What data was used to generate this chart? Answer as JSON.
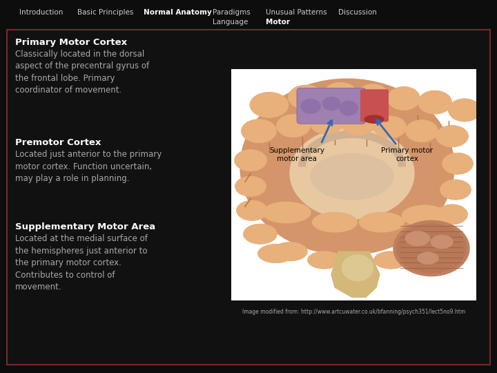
{
  "background_color": "#0d0d0d",
  "border_color": "#7a2828",
  "nav_items": [
    "Introduction",
    "Basic Principles",
    "Normal Anatomy",
    "Paradigms",
    "Unusual Patterns",
    "Discussion"
  ],
  "nav_bold": "Normal Anatomy",
  "nav_sub": [
    "Language",
    "Motor"
  ],
  "nav_sub_bold": "Motor",
  "nav_color": "#cccccc",
  "nav_bold_color": "#ffffff",
  "content_bg": "#111111",
  "section1_title": "Primary Motor Cortex",
  "section1_text": "Classically located in the dorsal\naspect of the precentral gyrus of\nthe frontal lobe. Primary\ncoordinator of movement.",
  "section2_title": "Premotor Cortex",
  "section2_text": "Located just anterior to the primary\nmotor cortex. Function uncertain,\nmay play a role in planning.",
  "section3_title": "Supplementary Motor Area",
  "section3_text": "Located at the medial surface of\nthe hemispheres just anterior to\nthe primary motor cortex.\nContributes to control of\nmovement.",
  "title_bold_color": "#ffffff",
  "body_color": "#aaaaaa",
  "title_fontsize": 9.5,
  "body_fontsize": 8.5,
  "image_caption": "Image modified from: http://www.artcuwater.co.uk/bfanning/psych351/lect5no9.htm",
  "caption_color": "#aaaaaa",
  "caption_fontsize": 5.5,
  "img_label1": "Supplementary\nmotor area",
  "img_label2": "Primary motor\ncortex"
}
